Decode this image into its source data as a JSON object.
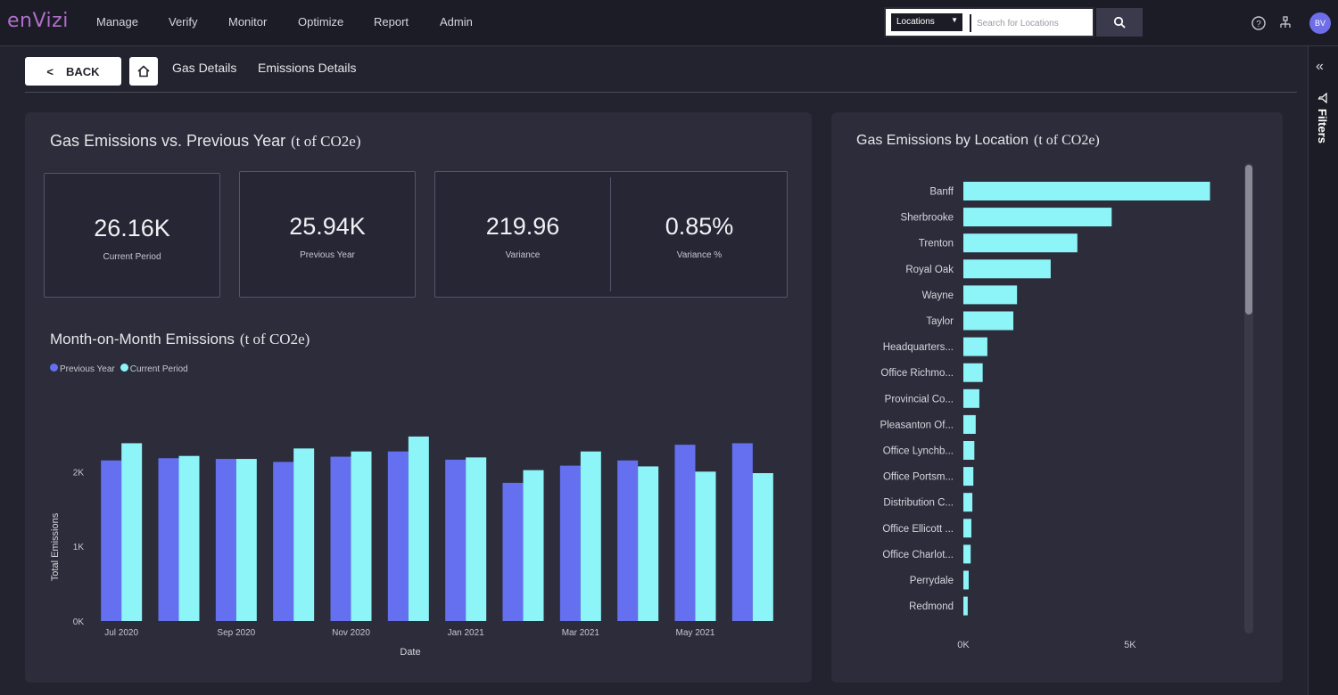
{
  "app": {
    "logo": "enVizi"
  },
  "nav": {
    "items": [
      "Manage",
      "Verify",
      "Monitor",
      "Optimize",
      "Report",
      "Admin"
    ]
  },
  "search": {
    "scope": "Locations",
    "placeholder": "Search for Locations"
  },
  "user": {
    "initials": "BV"
  },
  "breadcrumb": {
    "back_label": "BACK",
    "items": [
      "Gas Details",
      "Emissions Details"
    ]
  },
  "filters": {
    "label": "Filters"
  },
  "overview": {
    "title": "Gas Emissions vs. Previous Year",
    "unit": "(t of CO2e)",
    "kpis": [
      {
        "value": "26.16K",
        "label": "Current Period"
      },
      {
        "value": "25.94K",
        "label": "Previous Year"
      },
      {
        "value": "219.96",
        "label": "Variance"
      },
      {
        "value": "0.85%",
        "label": "Variance %"
      }
    ]
  },
  "colors": {
    "previous_year": "#6470f0",
    "current_period": "#8df4f8",
    "location_bar": "#8df4f8"
  },
  "chart_data": [
    {
      "type": "bar",
      "title": "Month-on-Month Emissions",
      "unit": "(t of CO2e)",
      "xlabel": "Date",
      "ylabel": "Total Emissions",
      "ylim": [
        0,
        2600
      ],
      "y_ticks": [
        "0K",
        "1K",
        "2K"
      ],
      "y_tick_values": [
        0,
        1000,
        2000
      ],
      "categories": [
        "Jul 2020",
        "Aug 2020",
        "Sep 2020",
        "Oct 2020",
        "Nov 2020",
        "Dec 2020",
        "Jan 2021",
        "Feb 2021",
        "Mar 2021",
        "Apr 2021",
        "May 2021",
        "Jun 2021"
      ],
      "x_tick_labels": [
        "Jul 2020",
        "",
        "Sep 2020",
        "",
        "Nov 2020",
        "",
        "Jan 2021",
        "",
        "Mar 2021",
        "",
        "May 2021",
        ""
      ],
      "legend": "top-left",
      "series": [
        {
          "name": "Previous Year",
          "values": [
            2150,
            2180,
            2170,
            2130,
            2200,
            2270,
            2160,
            1850,
            2080,
            2150,
            2360,
            2380
          ]
        },
        {
          "name": "Current Period",
          "values": [
            2380,
            2210,
            2170,
            2310,
            2270,
            2470,
            2190,
            2020,
            2270,
            2070,
            2000,
            1980
          ]
        }
      ]
    },
    {
      "type": "bar",
      "orientation": "horizontal",
      "title": "Gas Emissions by Location",
      "unit": "(t of CO2e)",
      "x_ticks": [
        "0K",
        "5K"
      ],
      "x_tick_values": [
        0,
        5000
      ],
      "xlim": [
        0,
        7600
      ],
      "categories": [
        "Banff",
        "Sherbrooke",
        "Trenton",
        "Royal Oak",
        "Wayne",
        "Taylor",
        "Headquarters...",
        "Office Richmo...",
        "Provincial Co...",
        "Pleasanton Of...",
        "Office Lynchb...",
        "Office Portsm...",
        "Distribution C...",
        "Office Ellicott ...",
        "Office Charlot...",
        "Perrydale",
        "Redmond"
      ],
      "values": [
        7400,
        4450,
        3420,
        2620,
        1610,
        1500,
        720,
        580,
        480,
        370,
        330,
        300,
        270,
        240,
        220,
        160,
        130
      ]
    }
  ]
}
